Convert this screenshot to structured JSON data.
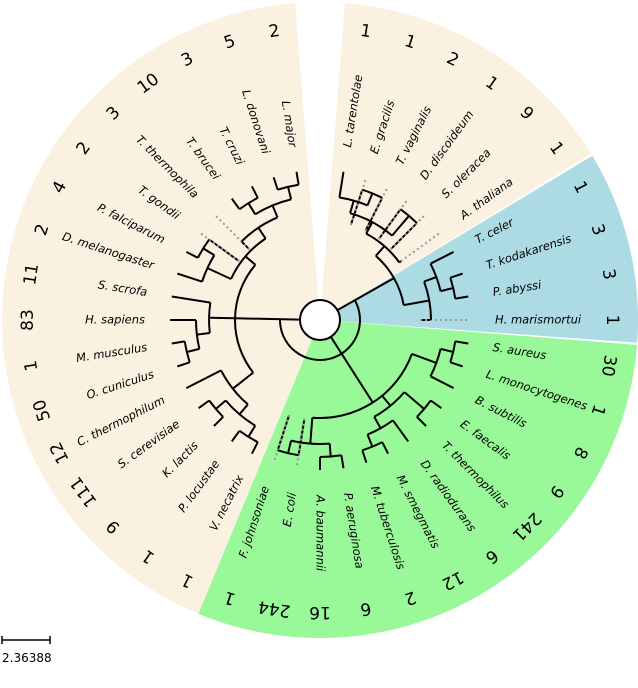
{
  "colors": {
    "eukaryota": "#fbf1e1",
    "archaea": "#addbe4",
    "bacteria": "#99f898",
    "branch": "#000000",
    "dotted": "#999999"
  },
  "scale_bar": {
    "label": "2.36388"
  },
  "leaves": [
    {
      "name": "L. tarentolae",
      "count": "1",
      "group": "eukaryota"
    },
    {
      "name": "E. gracilis",
      "count": "1",
      "group": "eukaryota"
    },
    {
      "name": "T. vaginalis",
      "count": "2",
      "group": "eukaryota"
    },
    {
      "name": "D. discoideum",
      "count": "1",
      "group": "eukaryota"
    },
    {
      "name": "S. oleracea",
      "count": "9",
      "group": "eukaryota"
    },
    {
      "name": "A. thaliana",
      "count": "1",
      "group": "eukaryota"
    },
    {
      "name": "T. celer",
      "count": "1",
      "group": "archaea"
    },
    {
      "name": "T. kodakarensis",
      "count": "3",
      "group": "archaea"
    },
    {
      "name": "P. abyssi",
      "count": "3",
      "group": "archaea"
    },
    {
      "name": "H. marismortui",
      "count": "1",
      "group": "archaea"
    },
    {
      "name": "S. aureus",
      "count": "30",
      "group": "bacteria"
    },
    {
      "name": "L. monocytogenes",
      "count": "1",
      "group": "bacteria"
    },
    {
      "name": "B. subtilis",
      "count": "8",
      "group": "bacteria"
    },
    {
      "name": "E. faecalis",
      "count": "9",
      "group": "bacteria"
    },
    {
      "name": "T. thermophilus",
      "count": "241",
      "group": "bacteria"
    },
    {
      "name": "D. radiodurans",
      "count": "6",
      "group": "bacteria"
    },
    {
      "name": "M. smegmatis",
      "count": "12",
      "group": "bacteria"
    },
    {
      "name": "M. tuberculosis",
      "count": "2",
      "group": "bacteria"
    },
    {
      "name": "P. aeruginosa",
      "count": "6",
      "group": "bacteria"
    },
    {
      "name": "A. baumannii",
      "count": "16",
      "group": "bacteria"
    },
    {
      "name": "E. coli",
      "count": "244",
      "group": "bacteria"
    },
    {
      "name": "F. johnsoniae",
      "count": "1",
      "group": "bacteria"
    },
    {
      "name": "V. necatrix",
      "count": "1",
      "group": "eukaryota"
    },
    {
      "name": "P. locustae",
      "count": "1",
      "group": "eukaryota"
    },
    {
      "name": "K. lactis",
      "count": "9",
      "group": "eukaryota"
    },
    {
      "name": "S. cerevisiae",
      "count": "111",
      "group": "eukaryota"
    },
    {
      "name": "C. thermophilum",
      "count": "12",
      "group": "eukaryota"
    },
    {
      "name": "O. cuniculus",
      "count": "50",
      "group": "eukaryota"
    },
    {
      "name": "M. musculus",
      "count": "1",
      "group": "eukaryota"
    },
    {
      "name": "H. sapiens",
      "count": "83",
      "group": "eukaryota"
    },
    {
      "name": "S. scrofa",
      "count": "11",
      "group": "eukaryota"
    },
    {
      "name": "D. melanogaster",
      "count": "2",
      "group": "eukaryota"
    },
    {
      "name": "P. falciparum",
      "count": "4",
      "group": "eukaryota"
    },
    {
      "name": "T. gondii",
      "count": "2",
      "group": "eukaryota"
    },
    {
      "name": "T. thermophila",
      "count": "3",
      "group": "eukaryota"
    },
    {
      "name": "T. brucei",
      "count": "10",
      "group": "eukaryota"
    },
    {
      "name": "T. cruzi",
      "count": "3",
      "group": "eukaryota"
    },
    {
      "name": "L. donovani",
      "count": "5",
      "group": "eukaryota"
    },
    {
      "name": "L. major",
      "count": "2",
      "group": "eukaryota"
    }
  ]
}
